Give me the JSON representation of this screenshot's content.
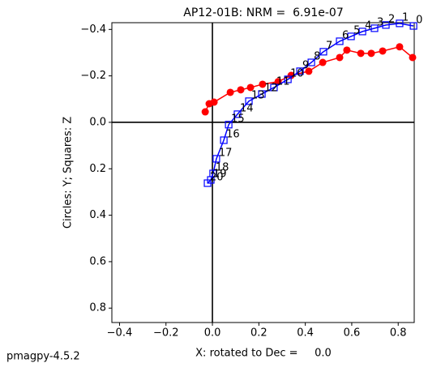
{
  "chart_data": {
    "type": "zijderveld",
    "title": "AP12-01B: NRM =  6.91e-07",
    "x_label": "X: rotated to Dec =     0.0",
    "y_label": "Circles: Y; Squares: Z",
    "footer": "pmagpy-4.5.2",
    "xlim": [
      -0.433,
      0.869
    ],
    "ylim": [
      0.862,
      -0.429
    ],
    "xticks": [
      {
        "value": -0.4,
        "label": "−0.4"
      },
      {
        "value": -0.2,
        "label": "−0.2"
      },
      {
        "value": 0,
        "label": "0.0"
      },
      0.2,
      0.4,
      0.6,
      0.8
    ],
    "yticks": [
      {
        "value": -0.4,
        "label": "−0.4"
      },
      {
        "value": -0.2,
        "label": "−0.2"
      },
      {
        "value": 0,
        "label": "0.0"
      },
      0.2,
      0.4,
      0.6,
      0.8
    ],
    "series": [
      {
        "name": "Y",
        "marker": "circle",
        "color": "#ff0000",
        "x": [
          -0.031,
          -0.014,
          0.007,
          0.077,
          0.122,
          0.164,
          0.216,
          0.283,
          0.339,
          0.415,
          0.475,
          0.548,
          0.579,
          0.639,
          0.684,
          0.733,
          0.806,
          0.862
        ],
        "values": [
          -0.045,
          -0.08,
          -0.087,
          -0.129,
          -0.14,
          -0.15,
          -0.164,
          -0.175,
          -0.202,
          -0.22,
          -0.258,
          -0.279,
          -0.311,
          -0.297,
          -0.297,
          -0.307,
          -0.325,
          -0.279
        ]
      },
      {
        "name": "Z",
        "marker": "square",
        "color": "#0000ff",
        "x": [
          0.866,
          0.806,
          0.747,
          0.698,
          0.646,
          0.597,
          0.548,
          0.478,
          0.426,
          0.377,
          0.325,
          0.265,
          0.213,
          0.157,
          0.108,
          0.07,
          0.049,
          0.017,
          0.003,
          -0.007,
          -0.021
        ],
        "values": [
          -0.415,
          -0.426,
          -0.419,
          -0.405,
          -0.391,
          -0.37,
          -0.349,
          -0.304,
          -0.258,
          -0.22,
          -0.185,
          -0.15,
          -0.122,
          -0.091,
          -0.035,
          0.01,
          0.077,
          0.157,
          0.22,
          0.248,
          0.262
        ],
        "point_labels": [
          "0",
          "1",
          "2",
          "3",
          "4",
          "5",
          "6",
          "7",
          "8",
          "9",
          "10",
          "11",
          "12",
          "13",
          "14",
          "15",
          "16",
          "17",
          "18",
          "19",
          "20"
        ]
      }
    ]
  }
}
